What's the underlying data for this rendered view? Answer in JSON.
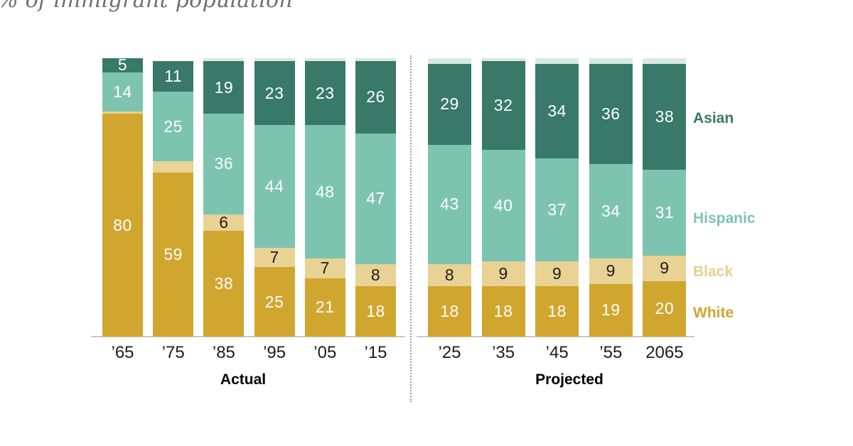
{
  "title": "% of immigrant population",
  "chart_data": {
    "type": "bar",
    "stacked": true,
    "title": "% of immigrant population",
    "value_unit": "percent",
    "ylim": [
      0,
      100
    ],
    "grid": false,
    "legend_position": "right",
    "legend": [
      {
        "name": "asian",
        "label": "Asian"
      },
      {
        "name": "hispanic",
        "label": "Hispanic"
      },
      {
        "name": "black",
        "label": "Black"
      },
      {
        "name": "white",
        "label": "White"
      }
    ],
    "colors": {
      "asian": "#38796a",
      "hispanic": "#7dc4b0",
      "black": "#e8d294",
      "white": "#d1a62f",
      "other": "#d8e9e1",
      "label_light": "#ffffff",
      "label_dark": "#1d1d1d",
      "legend_black_text": "#e5cf8e"
    },
    "groups": [
      {
        "label": "Actual",
        "bars": [
          {
            "x_label": "’65",
            "segments": [
              {
                "name": "white",
                "value": 80,
                "label": "80"
              },
              {
                "name": "black",
                "value": 1
              },
              {
                "name": "hispanic",
                "value": 14,
                "label": "14"
              },
              {
                "name": "asian",
                "value": 5,
                "label": "5"
              }
            ]
          },
          {
            "x_label": "’75",
            "segments": [
              {
                "name": "white",
                "value": 59,
                "label": "59"
              },
              {
                "name": "black",
                "value": 4
              },
              {
                "name": "hispanic",
                "value": 25,
                "label": "25"
              },
              {
                "name": "asian",
                "value": 11,
                "label": "11"
              }
            ]
          },
          {
            "x_label": "’85",
            "segments": [
              {
                "name": "white",
                "value": 38,
                "label": "38"
              },
              {
                "name": "black",
                "value": 6,
                "label": "6"
              },
              {
                "name": "hispanic",
                "value": 36,
                "label": "36"
              },
              {
                "name": "asian",
                "value": 19,
                "label": "19"
              },
              {
                "name": "other",
                "value": 1
              }
            ]
          },
          {
            "x_label": "’95",
            "segments": [
              {
                "name": "white",
                "value": 25,
                "label": "25"
              },
              {
                "name": "black",
                "value": 7,
                "label": "7"
              },
              {
                "name": "hispanic",
                "value": 44,
                "label": "44"
              },
              {
                "name": "asian",
                "value": 23,
                "label": "23"
              },
              {
                "name": "other",
                "value": 1
              }
            ]
          },
          {
            "x_label": "’05",
            "segments": [
              {
                "name": "white",
                "value": 21,
                "label": "21"
              },
              {
                "name": "black",
                "value": 7,
                "label": "7"
              },
              {
                "name": "hispanic",
                "value": 48,
                "label": "48"
              },
              {
                "name": "asian",
                "value": 23,
                "label": "23"
              },
              {
                "name": "other",
                "value": 1
              }
            ]
          },
          {
            "x_label": "’15",
            "segments": [
              {
                "name": "white",
                "value": 18,
                "label": "18"
              },
              {
                "name": "black",
                "value": 8,
                "label": "8"
              },
              {
                "name": "hispanic",
                "value": 47,
                "label": "47"
              },
              {
                "name": "asian",
                "value": 26,
                "label": "26"
              },
              {
                "name": "other",
                "value": 1
              }
            ]
          }
        ]
      },
      {
        "label": "Projected",
        "bars": [
          {
            "x_label": "’25",
            "segments": [
              {
                "name": "white",
                "value": 18,
                "label": "18"
              },
              {
                "name": "black",
                "value": 8,
                "label": "8"
              },
              {
                "name": "hispanic",
                "value": 43,
                "label": "43"
              },
              {
                "name": "asian",
                "value": 29,
                "label": "29"
              },
              {
                "name": "other",
                "value": 2
              }
            ]
          },
          {
            "x_label": "’35",
            "segments": [
              {
                "name": "white",
                "value": 18,
                "label": "18"
              },
              {
                "name": "black",
                "value": 9,
                "label": "9"
              },
              {
                "name": "hispanic",
                "value": 40,
                "label": "40"
              },
              {
                "name": "asian",
                "value": 32,
                "label": "32"
              },
              {
                "name": "other",
                "value": 1
              }
            ]
          },
          {
            "x_label": "’45",
            "segments": [
              {
                "name": "white",
                "value": 18,
                "label": "18"
              },
              {
                "name": "black",
                "value": 9,
                "label": "9"
              },
              {
                "name": "hispanic",
                "value": 37,
                "label": "37"
              },
              {
                "name": "asian",
                "value": 34,
                "label": "34"
              },
              {
                "name": "other",
                "value": 2
              }
            ]
          },
          {
            "x_label": "’55",
            "segments": [
              {
                "name": "white",
                "value": 19,
                "label": "19"
              },
              {
                "name": "black",
                "value": 9,
                "label": "9"
              },
              {
                "name": "hispanic",
                "value": 34,
                "label": "34"
              },
              {
                "name": "asian",
                "value": 36,
                "label": "36"
              },
              {
                "name": "other",
                "value": 2
              }
            ]
          },
          {
            "x_label": "2065",
            "segments": [
              {
                "name": "white",
                "value": 20,
                "label": "20"
              },
              {
                "name": "black",
                "value": 9,
                "label": "9"
              },
              {
                "name": "hispanic",
                "value": 31,
                "label": "31"
              },
              {
                "name": "asian",
                "value": 38,
                "label": "38"
              },
              {
                "name": "other",
                "value": 2
              }
            ]
          }
        ]
      }
    ]
  }
}
